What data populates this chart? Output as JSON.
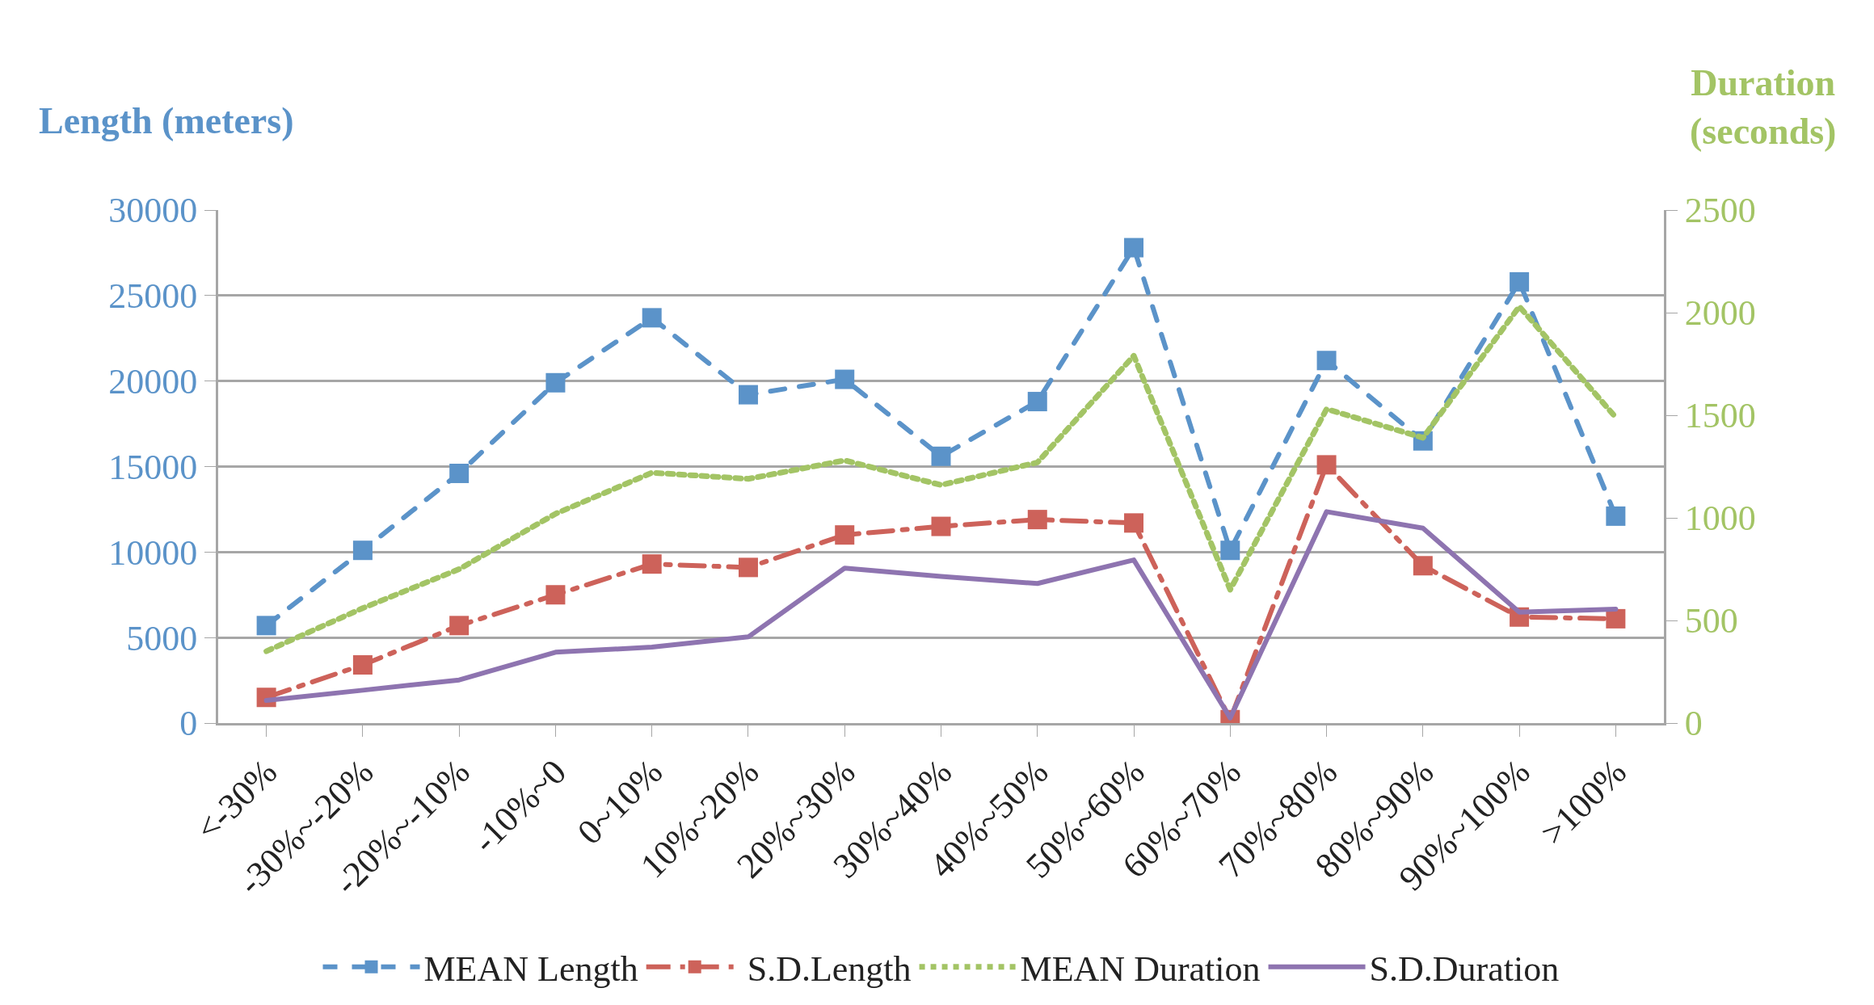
{
  "chart_data": {
    "type": "line",
    "ylabel": "Length (meters)",
    "y2label": "Duration (seconds)",
    "categories": [
      "<-30%",
      "-30%~-20%",
      "-20%~-10%",
      "-10%~0",
      "0~10%",
      "10%~20%",
      "20%~30%",
      "30%~40%",
      "40%~50%",
      "50%~60%",
      "60%~70%",
      "70%~80%",
      "80%~90%",
      "90%~100%",
      ">100%"
    ],
    "series": [
      {
        "name": "MEAN Length",
        "color": "#5b93c9",
        "marker": "square",
        "line_style": "dashed",
        "values": [
          5700,
          10100,
          14600,
          19900,
          23700,
          19200,
          20100,
          15600,
          18800,
          27800,
          10100,
          21200,
          16500,
          25800,
          12100
        ]
      },
      {
        "name": "S.D.Length",
        "color": "#cd625a",
        "marker": "square",
        "line_style": "dashdot",
        "values": [
          1500,
          3400,
          5700,
          7500,
          9300,
          9100,
          11000,
          11500,
          11900,
          11700,
          200,
          15100,
          9200,
          6200,
          6100
        ]
      },
      {
        "name": "MEAN Duration",
        "color": "#a3c465",
        "marker": "none",
        "line_style": "dotted",
        "axis": "y2",
        "values": [
          350,
          560,
          750,
          1020,
          1220,
          1190,
          1280,
          1160,
          1270,
          1790,
          650,
          1530,
          1390,
          2030,
          1490
        ]
      },
      {
        "name": "S.D.Duration",
        "color": "#8e74b0",
        "marker": "none",
        "line_style": "solid",
        "axis": "y2",
        "values": [
          110,
          160,
          210,
          345,
          370,
          420,
          755,
          715,
          680,
          795,
          25,
          1030,
          950,
          540,
          555
        ]
      }
    ],
    "ylim": [
      0,
      30000
    ],
    "yticks": [
      0,
      5000,
      10000,
      15000,
      20000,
      25000,
      30000
    ],
    "y2lim": [
      0,
      2500
    ],
    "y2ticks": [
      0,
      500,
      1000,
      1500,
      2000,
      2500
    ],
    "grid": "y",
    "legend": "bottom"
  }
}
